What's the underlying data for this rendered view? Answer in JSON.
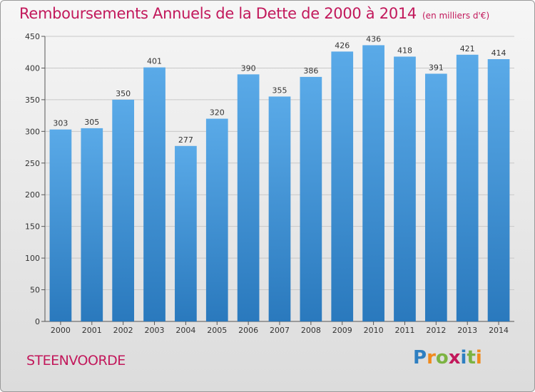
{
  "title": {
    "main": "Remboursements Annuels de la Dette de 2000 à 2014",
    "unit": "(en milliers d'€)"
  },
  "city": "STEENVOORDE",
  "logo": {
    "text": "Proxiti",
    "letters": [
      {
        "ch": "P",
        "color": "#2e7fc1"
      },
      {
        "ch": "r",
        "color": "#f08a1c"
      },
      {
        "ch": "o",
        "color": "#7cb342"
      },
      {
        "ch": "x",
        "color": "#c2185b"
      },
      {
        "ch": "i",
        "color": "#2e7fc1"
      },
      {
        "ch": "t",
        "color": "#7cb342"
      },
      {
        "ch": "i",
        "color": "#f08a1c"
      }
    ]
  },
  "colors": {
    "accent": "#c2185b",
    "bar_top": "#5aaae8",
    "bar_bottom": "#2a79bd",
    "grid": "#c8c8c8"
  },
  "chart_data": {
    "type": "bar",
    "categories": [
      "2000",
      "2001",
      "2002",
      "2003",
      "2004",
      "2005",
      "2006",
      "2007",
      "2008",
      "2009",
      "2010",
      "2011",
      "2012",
      "2013",
      "2014"
    ],
    "values": [
      303,
      305,
      350,
      401,
      277,
      320,
      390,
      355,
      386,
      426,
      436,
      418,
      391,
      421,
      414
    ],
    "yticks": [
      0,
      50,
      100,
      150,
      200,
      250,
      300,
      350,
      400,
      450
    ],
    "ylim": [
      0,
      450
    ],
    "grid": true
  }
}
